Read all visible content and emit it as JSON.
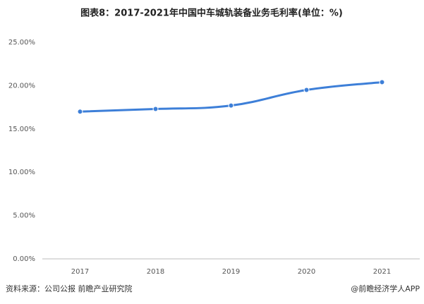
{
  "chart_data": {
    "type": "line",
    "title": "图表8：2017-2021年中国中车城轨装备业务毛利率(单位：%)",
    "categories": [
      "2017",
      "2018",
      "2019",
      "2020",
      "2021"
    ],
    "series": [
      {
        "name": "毛利率",
        "color": "#3d7fd8",
        "values": [
          17.0,
          17.3,
          17.7,
          19.5,
          20.4
        ]
      }
    ],
    "ylim": [
      0,
      25
    ],
    "yticks": [
      {
        "value": 0,
        "label": "0.00%"
      },
      {
        "value": 5,
        "label": "5.00%"
      },
      {
        "value": 10,
        "label": "10.00%"
      },
      {
        "value": 15,
        "label": "15.00%"
      },
      {
        "value": 20,
        "label": "20.00%"
      },
      {
        "value": 25,
        "label": "25.00%"
      }
    ],
    "grid": false,
    "source": "资料来源：公司公报 前瞻产业研究院",
    "credit": "@前瞻经济学人APP"
  }
}
